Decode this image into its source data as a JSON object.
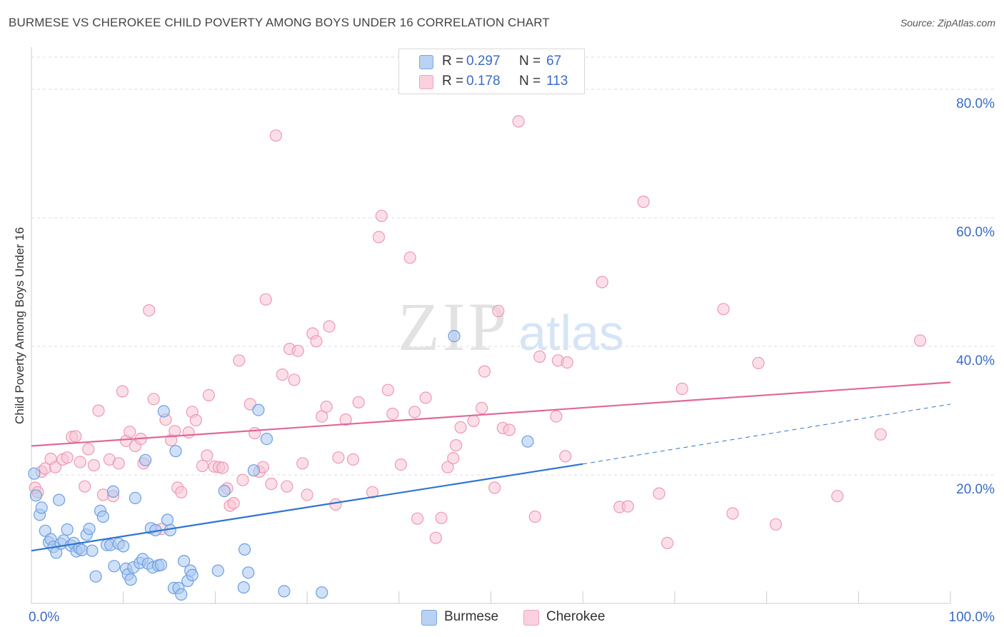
{
  "title": "BURMESE VS CHEROKEE CHILD POVERTY AMONG BOYS UNDER 16 CORRELATION CHART",
  "source": "Source: ZipAtlas.com",
  "watermark": {
    "zip": "ZIP",
    "atlas": "atlas"
  },
  "colors": {
    "burmese_fill": "#aac8f0",
    "burmese_stroke": "#6d9ee0",
    "burmese_line": "#2f74d0",
    "cherokee_fill": "#f8c4d4",
    "cherokee_stroke": "#ee99b4",
    "cherokee_line": "#e0689a",
    "axis_value_color": "#3a6cc5",
    "grid": "#dddddd"
  },
  "legend": {
    "rows": [
      {
        "series": "Burmese",
        "r_label": "R =",
        "r_value": "0.297",
        "n_label": "N =",
        "n_value": "67"
      },
      {
        "series": "Cherokee",
        "r_label": "R =",
        "r_value": "0.178",
        "n_label": "N =",
        "n_value": "113"
      }
    ]
  },
  "bottom_legend": [
    "Burmese",
    "Cherokee"
  ],
  "chart_data": {
    "type": "scatter",
    "title": "BURMESE VS CHEROKEE CHILD POVERTY AMONG BOYS UNDER 16 CORRELATION CHART",
    "xlabel": "",
    "ylabel": "Child Poverty Among Boys Under 16",
    "xlim": [
      0,
      100
    ],
    "ylim": [
      0,
      85
    ],
    "x_ticks": [
      0,
      10,
      20,
      30,
      40,
      50,
      60,
      70,
      80,
      90,
      100
    ],
    "x_tick_labels": [
      "0.0%",
      "100.0%"
    ],
    "y_ticks": [
      20,
      40,
      60,
      80
    ],
    "y_tick_labels": [
      "20.0%",
      "40.0%",
      "60.0%",
      "80.0%"
    ],
    "grid": "horizontal dashed",
    "legend_position": "top-center",
    "series": [
      {
        "name": "Burmese",
        "r": 0.297,
        "n": 67,
        "trend": {
          "x": [
            0,
            60
          ],
          "y": [
            8.2,
            21.7
          ],
          "dashed_to": [
            100,
            31.0
          ]
        },
        "points": [
          [
            0.3,
            20.2
          ],
          [
            0.5,
            16.8
          ],
          [
            0.9,
            13.8
          ],
          [
            1.1,
            14.9
          ],
          [
            1.5,
            11.3
          ],
          [
            1.9,
            9.5
          ],
          [
            2.1,
            10.0
          ],
          [
            2.4,
            8.8
          ],
          [
            2.7,
            7.9
          ],
          [
            3.0,
            16.1
          ],
          [
            3.2,
            9.3
          ],
          [
            3.5,
            9.8
          ],
          [
            3.9,
            11.5
          ],
          [
            4.3,
            9.0
          ],
          [
            4.6,
            9.4
          ],
          [
            4.9,
            8.1
          ],
          [
            5.2,
            8.6
          ],
          [
            5.5,
            8.3
          ],
          [
            6.0,
            10.7
          ],
          [
            6.3,
            11.6
          ],
          [
            6.6,
            8.2
          ],
          [
            7.0,
            4.2
          ],
          [
            7.5,
            14.4
          ],
          [
            7.8,
            13.5
          ],
          [
            8.2,
            9.1
          ],
          [
            8.6,
            9.1
          ],
          [
            8.9,
            17.4
          ],
          [
            9.0,
            5.8
          ],
          [
            9.5,
            9.3
          ],
          [
            10.0,
            8.9
          ],
          [
            10.3,
            5.4
          ],
          [
            10.5,
            4.5
          ],
          [
            10.8,
            3.7
          ],
          [
            11.1,
            5.6
          ],
          [
            11.3,
            16.4
          ],
          [
            11.8,
            6.3
          ],
          [
            12.1,
            6.9
          ],
          [
            12.4,
            22.3
          ],
          [
            12.7,
            6.2
          ],
          [
            13.0,
            11.7
          ],
          [
            13.2,
            5.6
          ],
          [
            13.5,
            11.4
          ],
          [
            13.8,
            5.9
          ],
          [
            14.1,
            6.0
          ],
          [
            14.4,
            29.9
          ],
          [
            14.8,
            13.0
          ],
          [
            15.1,
            11.4
          ],
          [
            15.5,
            2.4
          ],
          [
            15.7,
            23.7
          ],
          [
            16.0,
            2.4
          ],
          [
            16.3,
            1.4
          ],
          [
            16.6,
            6.6
          ],
          [
            17.0,
            3.5
          ],
          [
            17.3,
            5.1
          ],
          [
            17.5,
            4.4
          ],
          [
            20.3,
            5.1
          ],
          [
            21.0,
            17.5
          ],
          [
            23.2,
            8.4
          ],
          [
            23.1,
            2.5
          ],
          [
            23.6,
            4.8
          ],
          [
            24.2,
            20.7
          ],
          [
            24.7,
            30.1
          ],
          [
            25.6,
            25.6
          ],
          [
            27.5,
            1.9
          ],
          [
            31.6,
            1.7
          ],
          [
            46.0,
            41.6
          ],
          [
            54.0,
            25.2
          ]
        ]
      },
      {
        "name": "Cherokee",
        "r": 0.178,
        "n": 113,
        "trend": {
          "x": [
            0,
            100
          ],
          "y": [
            24.5,
            34.4
          ]
        },
        "points": [
          [
            0.4,
            18.0
          ],
          [
            0.7,
            17.3
          ],
          [
            1.1,
            20.5
          ],
          [
            1.5,
            21.0
          ],
          [
            2.1,
            22.5
          ],
          [
            2.6,
            21.2
          ],
          [
            3.4,
            22.4
          ],
          [
            3.9,
            22.7
          ],
          [
            4.4,
            25.9
          ],
          [
            4.8,
            26.0
          ],
          [
            5.3,
            22.0
          ],
          [
            5.8,
            18.2
          ],
          [
            6.2,
            24.0
          ],
          [
            6.8,
            21.5
          ],
          [
            7.3,
            30.0
          ],
          [
            7.8,
            16.9
          ],
          [
            8.5,
            22.4
          ],
          [
            8.9,
            16.7
          ],
          [
            9.5,
            21.8
          ],
          [
            9.9,
            33.0
          ],
          [
            10.3,
            25.3
          ],
          [
            10.7,
            26.7
          ],
          [
            11.3,
            24.5
          ],
          [
            11.9,
            25.6
          ],
          [
            12.2,
            21.8
          ],
          [
            12.8,
            45.6
          ],
          [
            13.3,
            31.8
          ],
          [
            14.2,
            11.6
          ],
          [
            14.6,
            28.6
          ],
          [
            15.2,
            25.4
          ],
          [
            15.6,
            26.8
          ],
          [
            15.9,
            18.0
          ],
          [
            16.3,
            17.3
          ],
          [
            17.1,
            26.6
          ],
          [
            17.5,
            29.8
          ],
          [
            17.9,
            28.5
          ],
          [
            18.6,
            21.4
          ],
          [
            19.1,
            23.0
          ],
          [
            19.3,
            32.4
          ],
          [
            19.9,
            21.3
          ],
          [
            20.4,
            21.2
          ],
          [
            20.8,
            21.1
          ],
          [
            21.3,
            17.9
          ],
          [
            21.6,
            15.2
          ],
          [
            22.0,
            15.6
          ],
          [
            22.6,
            37.8
          ],
          [
            23.0,
            19.2
          ],
          [
            23.8,
            31.0
          ],
          [
            24.3,
            26.5
          ],
          [
            24.8,
            20.5
          ],
          [
            25.2,
            21.2
          ],
          [
            25.5,
            47.3
          ],
          [
            26.1,
            18.6
          ],
          [
            26.6,
            72.8
          ],
          [
            27.3,
            35.6
          ],
          [
            27.8,
            18.2
          ],
          [
            28.1,
            39.6
          ],
          [
            28.6,
            34.8
          ],
          [
            29.0,
            39.3
          ],
          [
            29.5,
            21.8
          ],
          [
            30.0,
            16.9
          ],
          [
            30.6,
            42.0
          ],
          [
            31.0,
            40.8
          ],
          [
            31.6,
            29.1
          ],
          [
            32.1,
            30.6
          ],
          [
            32.4,
            43.1
          ],
          [
            33.1,
            15.4
          ],
          [
            33.4,
            22.7
          ],
          [
            34.2,
            28.6
          ],
          [
            35.0,
            22.4
          ],
          [
            35.6,
            31.3
          ],
          [
            37.1,
            17.3
          ],
          [
            38.1,
            60.3
          ],
          [
            37.8,
            57.0
          ],
          [
            38.8,
            33.2
          ],
          [
            39.3,
            29.5
          ],
          [
            40.2,
            21.6
          ],
          [
            41.2,
            53.8
          ],
          [
            41.7,
            29.8
          ],
          [
            42.0,
            13.2
          ],
          [
            42.9,
            32.0
          ],
          [
            44.0,
            10.2
          ],
          [
            44.6,
            13.3
          ],
          [
            45.3,
            21.2
          ],
          [
            45.9,
            22.6
          ],
          [
            46.2,
            24.6
          ],
          [
            46.7,
            27.4
          ],
          [
            48.1,
            28.4
          ],
          [
            49.0,
            30.4
          ],
          [
            49.3,
            36.1
          ],
          [
            50.4,
            18.0
          ],
          [
            50.8,
            45.5
          ],
          [
            51.3,
            27.3
          ],
          [
            52.0,
            27.0
          ],
          [
            53.0,
            75.0
          ],
          [
            54.8,
            13.5
          ],
          [
            55.3,
            38.4
          ],
          [
            57.1,
            29.1
          ],
          [
            57.3,
            37.8
          ],
          [
            58.3,
            37.5
          ],
          [
            58.1,
            22.9
          ],
          [
            62.1,
            50.0
          ],
          [
            64.0,
            15.0
          ],
          [
            64.9,
            15.1
          ],
          [
            66.6,
            62.5
          ],
          [
            68.3,
            17.1
          ],
          [
            69.2,
            9.4
          ],
          [
            70.8,
            33.4
          ],
          [
            75.3,
            45.8
          ],
          [
            76.3,
            14.0
          ],
          [
            79.1,
            37.4
          ],
          [
            81.0,
            12.3
          ],
          [
            87.7,
            16.7
          ],
          [
            92.4,
            26.3
          ],
          [
            96.7,
            40.9
          ]
        ]
      }
    ]
  }
}
